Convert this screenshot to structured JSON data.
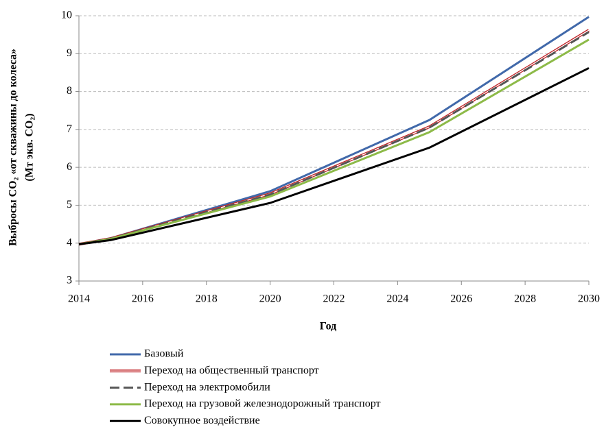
{
  "chart_data": {
    "type": "line",
    "y_label": [
      "Выбросы CO₂ «от скважины до колеса»",
      "(Мт экв. CO₂)"
    ],
    "x_label": "Год",
    "x": [
      2014,
      2015,
      2020,
      2025,
      2030
    ],
    "xlim": [
      2014,
      2030
    ],
    "xticks": [
      2014,
      2016,
      2018,
      2020,
      2022,
      2024,
      2026,
      2028,
      2030
    ],
    "ylim": [
      3,
      10
    ],
    "yticks": [
      3,
      4,
      5,
      6,
      7,
      8,
      9,
      10
    ],
    "grid": true,
    "legend": "bottom",
    "series": [
      {
        "name": "Базовый",
        "color": "#4169aa",
        "values": [
          3.97,
          4.13,
          5.37,
          7.25,
          9.97
        ]
      },
      {
        "name": "Переход на общественный транспорт",
        "color": "#c0262a",
        "outline": true,
        "values": [
          3.97,
          4.12,
          5.3,
          7.07,
          9.62
        ]
      },
      {
        "name": "Переход на электромобили",
        "color": "#555555",
        "dashed": true,
        "values": [
          3.97,
          4.12,
          5.28,
          7.05,
          9.57
        ]
      },
      {
        "name": "Переход на грузовой железнодорожный транспорт",
        "color": "#8dba48",
        "values": [
          3.97,
          4.11,
          5.23,
          6.93,
          9.37
        ]
      },
      {
        "name": "Совокупное воздействие",
        "color": "#000000",
        "values": [
          3.97,
          4.08,
          5.06,
          6.52,
          8.62
        ]
      }
    ]
  }
}
